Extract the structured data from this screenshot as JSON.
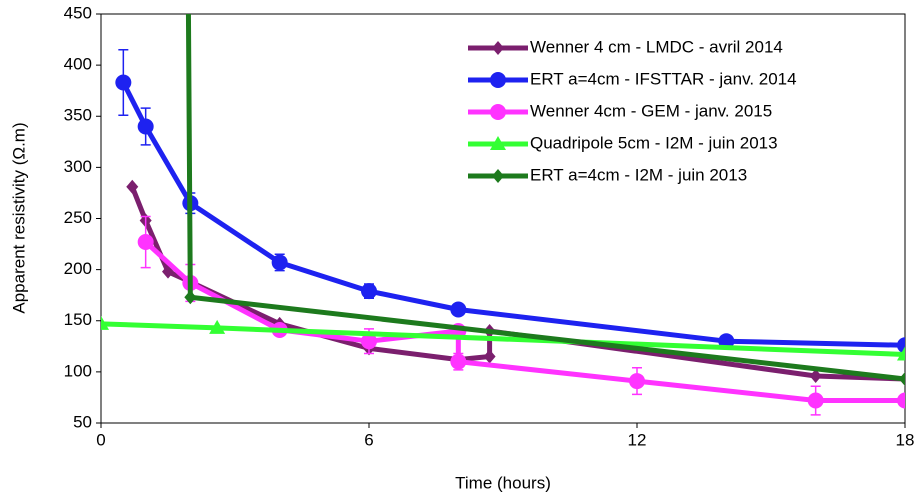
{
  "chart_data": {
    "type": "line",
    "xlabel": "Time (hours)",
    "ylabel": "Apparent resistivity (Ω.m)",
    "xlim": [
      0,
      18
    ],
    "xticks": [
      0,
      6,
      12,
      18
    ],
    "ylim": [
      50,
      450
    ],
    "yticks": [
      50,
      100,
      150,
      200,
      250,
      300,
      350,
      400,
      450
    ],
    "legend": "upper right",
    "series": [
      {
        "name": "Wenner 4 cm - LMDC - avril 2014",
        "color": "#7b1f6e",
        "marker": "diamond",
        "x": [
          0.7,
          1.0,
          1.5,
          2,
          4,
          6,
          8,
          8.7,
          8.7,
          16,
          18
        ],
        "values": [
          281,
          248,
          198,
          188,
          147,
          123,
          112,
          115,
          140,
          96,
          93
        ]
      },
      {
        "name": "ERT a=4cm - IFSTTAR - janv. 2014",
        "color": "#1e22f0",
        "marker": "circle",
        "x": [
          0.5,
          1,
          2,
          4,
          6,
          8,
          14,
          18
        ],
        "values": [
          383,
          340,
          265,
          207,
          179,
          161,
          130,
          126
        ],
        "errors": [
          32,
          18,
          10,
          8,
          7,
          5,
          4,
          3
        ]
      },
      {
        "name": "Wenner 4cm - GEM - janv. 2015",
        "color": "#ff33ff",
        "marker": "circle",
        "x": [
          1,
          2,
          4,
          6,
          8,
          8,
          12,
          16,
          18
        ],
        "values": [
          227,
          187,
          141,
          130,
          140,
          110,
          91,
          72,
          72
        ],
        "errors": [
          25,
          18,
          5,
          12,
          3,
          8,
          13,
          14,
          1
        ]
      },
      {
        "name": "Quadripole 5cm - I2M - juin 2013",
        "color": "#33ff33",
        "marker": "triangle",
        "x": [
          0,
          2.6,
          18
        ],
        "values": [
          147,
          143,
          117
        ]
      },
      {
        "name": "ERT a=4cm - I2M - juin 2013",
        "color": "#1d7a1d",
        "marker": "diamond",
        "x": [
          1.95,
          2,
          18
        ],
        "values": [
          500,
          173,
          93
        ]
      }
    ]
  }
}
